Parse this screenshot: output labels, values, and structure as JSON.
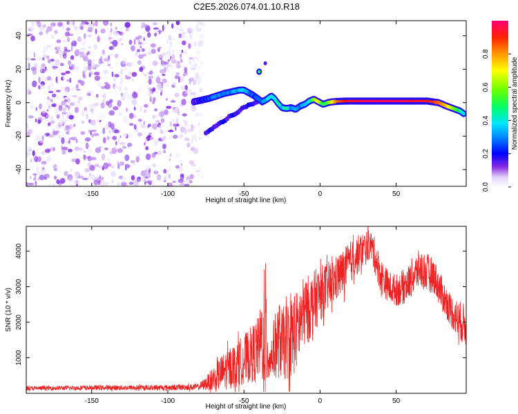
{
  "title": "C2E5.2026.074.01.10.R18",
  "colors": {
    "snr_line": "#ee2222",
    "axis": "#000000",
    "colormap": [
      "#ffffff",
      "#d9c8f5",
      "#8a2be2",
      "#4b00ff",
      "#0000ff",
      "#0088ff",
      "#00e5ff",
      "#00ff66",
      "#66ff00",
      "#ffff00",
      "#ff9900",
      "#ff2200",
      "#ff0077"
    ]
  },
  "chart_data": [
    {
      "type": "heatmap",
      "name": "spectrogram",
      "xlabel": "Height of straight line (km)",
      "ylabel": "Frequency (Hz)",
      "xlim": [
        -193,
        96
      ],
      "ylim": [
        -50,
        49
      ],
      "xticks": [
        -150,
        -100,
        -50,
        0,
        50
      ],
      "yticks": [
        -40,
        -20,
        0,
        20,
        40
      ],
      "noise_region_x": [
        -193,
        -76
      ],
      "ridge": {
        "x": [
          -83,
          -78,
          -73,
          -68,
          -63,
          -58,
          -53,
          -50,
          -47,
          -44,
          -41,
          -38,
          -35,
          -32,
          -30,
          -28,
          -25,
          -22,
          -19,
          -16,
          -13,
          -10,
          -7,
          -4,
          -1,
          2,
          5,
          8,
          12,
          20,
          30,
          40,
          50,
          60,
          70,
          78,
          83,
          86,
          89,
          92,
          95
        ],
        "y": [
          0.5,
          1.5,
          2.5,
          4,
          5.5,
          6.5,
          7.5,
          7.5,
          6,
          4.5,
          2.5,
          0.5,
          2,
          4,
          2.5,
          0,
          -3,
          -3.5,
          -3,
          -4,
          -2,
          -1,
          1,
          2,
          0.5,
          -1,
          0,
          0.5,
          0.8,
          1,
          1,
          1,
          1,
          1,
          1,
          0,
          -2,
          -3,
          -4,
          -5,
          -7
        ]
      },
      "ridge_amplitude": [
        0.15,
        0.2,
        0.25,
        0.3,
        0.3,
        0.3,
        0.35,
        0.4,
        0.3,
        0.25,
        0.25,
        0.3,
        0.35,
        0.4,
        0.35,
        0.45,
        0.35,
        0.45,
        0.3,
        0.35,
        0.3,
        0.35,
        0.4,
        0.6,
        0.7,
        0.45,
        0.55,
        0.7,
        0.85,
        0.95,
        0.97,
        0.98,
        0.97,
        0.95,
        0.92,
        0.85,
        0.75,
        0.65,
        0.55,
        0.45,
        0.35
      ],
      "secondary_branch": {
        "x": [
          -75,
          -70,
          -65,
          -60,
          -55,
          -50,
          -45,
          -40
        ],
        "y": [
          -18,
          -15,
          -12,
          -9,
          -6,
          -3,
          -1,
          1
        ]
      },
      "spot": {
        "x": [
          -40,
          -36
        ],
        "y": [
          18.5,
          23.5
        ],
        "amplitude": [
          0.5,
          0.15
        ]
      },
      "colorbar": {
        "label": "Normalized spectral amplitude",
        "range": [
          0,
          1
        ],
        "ticks": [
          "0.0",
          "0.2",
          "0.4",
          "0.6",
          "0.8"
        ]
      }
    },
    {
      "type": "line",
      "name": "snr",
      "xlabel": "Height of straight line (km)",
      "ylabel": "SNR (10 * v/v)",
      "xlim": [
        -193,
        96
      ],
      "ylim": [
        0,
        4700
      ],
      "xticks": [
        -150,
        -100,
        -50,
        0,
        50
      ],
      "yticks": [
        1000,
        2000,
        3000,
        4000
      ],
      "envelope": {
        "x": [
          -193,
          -150,
          -100,
          -80,
          -75,
          -70,
          -65,
          -60,
          -55,
          -50,
          -45,
          -40,
          -38,
          -36,
          -35,
          -33,
          -30,
          -27,
          -25,
          -22,
          -20,
          -17,
          -15,
          -12,
          -10,
          -7,
          -5,
          -2,
          0,
          5,
          10,
          15,
          20,
          25,
          30,
          33,
          35,
          40,
          45,
          50,
          55,
          60,
          65,
          70,
          75,
          80,
          85,
          90,
          96
        ],
        "mean": [
          140,
          155,
          160,
          180,
          270,
          420,
          560,
          700,
          820,
          950,
          1100,
          1300,
          1600,
          1700,
          1500,
          900,
          1300,
          1500,
          1400,
          1450,
          1550,
          1700,
          1800,
          2100,
          2300,
          2400,
          2500,
          2700,
          2800,
          3000,
          3200,
          3400,
          3700,
          3900,
          4100,
          4200,
          4000,
          3300,
          3000,
          2900,
          3000,
          3200,
          3500,
          3400,
          3300,
          2800,
          2400,
          2100,
          1900
        ],
        "spread": [
          60,
          70,
          80,
          90,
          180,
          350,
          500,
          600,
          650,
          700,
          800,
          900,
          1300,
          2200,
          1500,
          500,
          900,
          1100,
          1000,
          1100,
          1200,
          1200,
          1100,
          1100,
          1000,
          950,
          900,
          850,
          800,
          700,
          650,
          650,
          600,
          550,
          500,
          400,
          500,
          500,
          450,
          450,
          500,
          500,
          550,
          550,
          500,
          500,
          450,
          550,
          600
        ]
      }
    }
  ]
}
